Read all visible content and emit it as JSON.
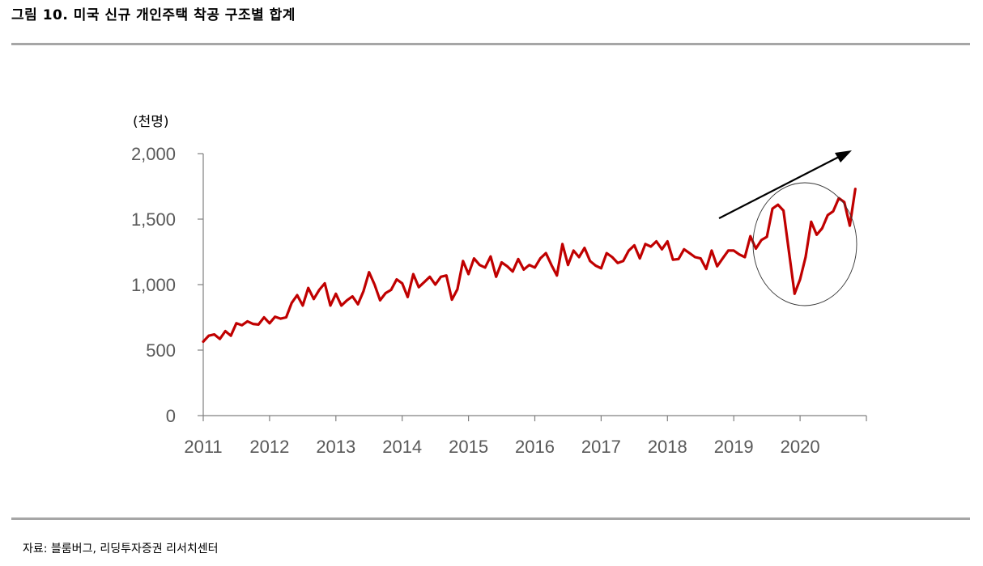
{
  "title": "그림 10. 미국 신규 개인주택 착공 구조별 합계",
  "source": "자료: 블룸버그, 리딩투자증권 리서치센터",
  "chart_data": {
    "type": "line",
    "unit_label": "(천명)",
    "ylim": [
      0,
      2000
    ],
    "yticks": [
      0,
      500,
      1000,
      1500,
      2000
    ],
    "ytick_labels": [
      "0",
      "500",
      "1,000",
      "1,500",
      "2,000"
    ],
    "xlim": [
      2011,
      2021
    ],
    "xticks": [
      2011,
      2012,
      2013,
      2014,
      2015,
      2016,
      2017,
      2018,
      2019,
      2020
    ],
    "xtick_labels": [
      "2011",
      "2012",
      "2013",
      "2014",
      "2015",
      "2016",
      "2017",
      "2018",
      "2019",
      "2020"
    ],
    "grid": false,
    "line_color": "#c00000",
    "annotations": [
      "upward-trend-arrow",
      "ellipse-highlight-2019-2020"
    ],
    "series": [
      {
        "x_start": "2011-01",
        "frequency": "monthly",
        "values": [
          565,
          610,
          620,
          585,
          645,
          610,
          705,
          690,
          720,
          700,
          695,
          750,
          705,
          755,
          740,
          750,
          860,
          920,
          840,
          975,
          890,
          960,
          1010,
          840,
          930,
          840,
          880,
          910,
          850,
          950,
          1095,
          1000,
          880,
          935,
          960,
          1040,
          1010,
          905,
          1080,
          980,
          1020,
          1060,
          1000,
          1060,
          1070,
          885,
          965,
          1180,
          1080,
          1200,
          1150,
          1130,
          1215,
          1060,
          1170,
          1140,
          1100,
          1195,
          1115,
          1150,
          1130,
          1200,
          1240,
          1150,
          1070,
          1310,
          1150,
          1260,
          1210,
          1280,
          1180,
          1145,
          1125,
          1240,
          1210,
          1165,
          1180,
          1260,
          1300,
          1200,
          1310,
          1290,
          1330,
          1270,
          1330,
          1190,
          1195,
          1270,
          1240,
          1210,
          1200,
          1120,
          1260,
          1140,
          1200,
          1260,
          1260,
          1230,
          1210,
          1370,
          1275,
          1340,
          1365,
          1580,
          1610,
          1565,
          1250,
          930,
          1040,
          1210,
          1480,
          1380,
          1430,
          1530,
          1560,
          1660,
          1630,
          1450,
          1730
        ]
      }
    ]
  }
}
